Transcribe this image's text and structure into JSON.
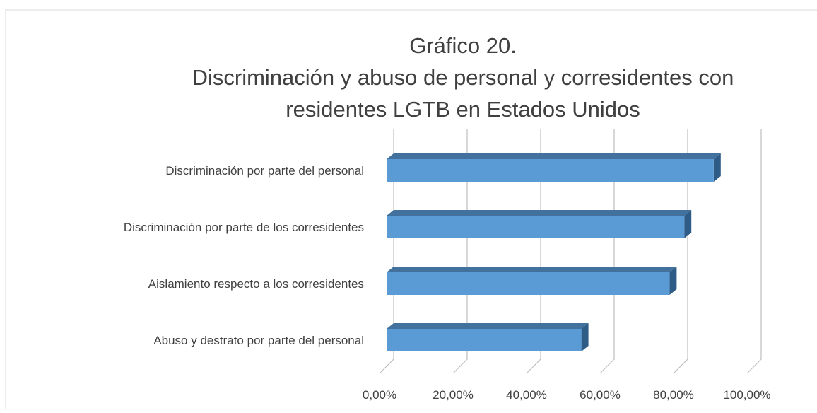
{
  "chart_data": {
    "type": "bar3d_horizontal",
    "title": [
      "Gráfico 20.",
      "Discriminación y abuso de personal y corresidentes con",
      "residentes LGTB en Estados Unidos"
    ],
    "categories": [
      "Discriminación por parte del personal",
      "Discriminación por parte de los corresidentes",
      "Aislamiento respecto a los corresidentes",
      "Abuso y destrato por parte del personal"
    ],
    "values": [
      89,
      81,
      77,
      53
    ],
    "color": "#5b9bd5",
    "xlim": [
      0,
      100
    ],
    "xticks": [
      {
        "value": 0,
        "label": "0,00%"
      },
      {
        "value": 20,
        "label": "20,00%"
      },
      {
        "value": 40,
        "label": "40,00%"
      },
      {
        "value": 60,
        "label": "60,00%"
      },
      {
        "value": 80,
        "label": "80,00%"
      },
      {
        "value": 100,
        "label": "100,00%"
      }
    ],
    "grid": true
  }
}
